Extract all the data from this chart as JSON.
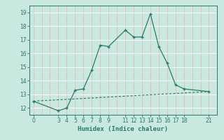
{
  "xlabel": "Humidex (Indice chaleur)",
  "bg_color": "#c8e8e0",
  "grid_color": "#e8c8c8",
  "line_color": "#2a7a6a",
  "curve_x": [
    0,
    3,
    4,
    5,
    6,
    7,
    8,
    9,
    11,
    12,
    13,
    14,
    15,
    16,
    17,
    18,
    21
  ],
  "curve_y": [
    12.5,
    11.8,
    12.0,
    13.3,
    13.4,
    14.8,
    16.6,
    16.5,
    17.7,
    17.2,
    17.2,
    18.9,
    16.5,
    15.3,
    13.7,
    13.4,
    13.2
  ],
  "baseline_x": [
    0,
    21
  ],
  "baseline_y": [
    12.5,
    13.2
  ],
  "xlim": [
    -0.5,
    22
  ],
  "ylim": [
    11.5,
    19.5
  ],
  "xticks": [
    0,
    3,
    4,
    5,
    6,
    7,
    8,
    9,
    11,
    12,
    13,
    14,
    15,
    16,
    17,
    18,
    21
  ],
  "yticks": [
    12,
    13,
    14,
    15,
    16,
    17,
    18,
    19
  ],
  "grid_xticks": [
    0,
    1,
    2,
    3,
    4,
    5,
    6,
    7,
    8,
    9,
    10,
    11,
    12,
    13,
    14,
    15,
    16,
    17,
    18,
    19,
    20,
    21
  ],
  "grid_yticks": [
    12,
    13,
    14,
    15,
    16,
    17,
    18,
    19
  ]
}
